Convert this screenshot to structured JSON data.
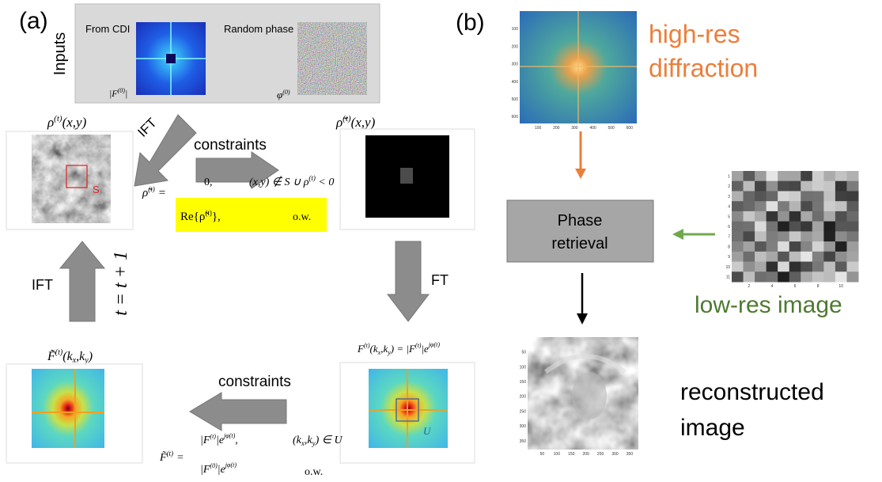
{
  "panel_a": {
    "label": "(a)",
    "inputs": {
      "title": "Inputs",
      "from_cdi": "From CDI",
      "random_phase": "Random phase",
      "amplitude": {
        "open": "|F",
        "sup": "(0)",
        "close": "|"
      },
      "phase": {
        "base": "φ",
        "sup": "(0)"
      }
    },
    "rho": {
      "base": "ρ",
      "sup": "(t)",
      "args": "(x,y)"
    },
    "support": "S",
    "ift_diagonal": "IFT",
    "constraints_top": "constraints",
    "eq_top": {
      "lhs": "ρ̃",
      "lhs_sup": "(t)",
      "equals": "=",
      "case1_value": "0,",
      "case1_cond": "(x,y) ∉ S ∪ ρ",
      "case1_sup": "(t)",
      "case1_tail": " < 0",
      "case2_value": "Re{ρ̃",
      "case2_sup": "(t)",
      "case2_tail": "},",
      "case2_cond": "o.w."
    },
    "rho_tilde": {
      "base": "ρ̃",
      "sup": "(t)",
      "args": "(x,y)"
    },
    "ft": "FT",
    "ift_left": "IFT",
    "iteration": "t = t + 1",
    "f_tilde": {
      "base": "F̃",
      "sup": "(t)",
      "open": "(k",
      "sub1": "x",
      "comma": ",k",
      "sub2": "y",
      "close": ")"
    },
    "f_measured": {
      "base": "F",
      "sup": "(t)",
      "open": "(k",
      "sub1": "x",
      "comma": ",k",
      "sub2": "y",
      "mid": ") = |F",
      "sup2": "(t)",
      "bar": "|e",
      "sup3": "jφ(t)"
    },
    "modulus_support": "U",
    "constraints_bottom": "constraints",
    "eq_bottom": {
      "lhs": "F̃",
      "lhs_sup": "(t)",
      "equals": "=",
      "case1": {
        "a": "|F",
        "a_sup": "(t)",
        "b": "|e",
        "b_sup": "jφ(t)",
        "c": ",",
        "cond_open": "(k",
        "sub1": "x",
        "comma": ",k",
        "sub2": "y",
        "cond_close": ") ∈ U"
      },
      "case2": {
        "a": "|F",
        "a_sup": "(0)",
        "b": "|e",
        "b_sup": "jφ(t)",
        "cond": "o.w."
      }
    }
  },
  "panel_b": {
    "label": "(b)",
    "high_res": [
      "high-res",
      "diffraction"
    ],
    "box": [
      "Phase",
      "retrieval"
    ],
    "low_res": "low-res image",
    "reconstructed": [
      "reconstructed",
      "image"
    ],
    "diffraction_axes": {
      "xticks": [
        100,
        200,
        300,
        400,
        500,
        600
      ],
      "yticks": [
        100,
        200,
        300,
        400,
        500,
        600
      ]
    },
    "lowres_axes": {
      "xticks": [
        2,
        4,
        6,
        8,
        10
      ],
      "yticks": [
        1,
        2,
        3,
        4,
        5,
        6,
        7,
        8,
        9,
        10,
        11
      ]
    },
    "reconstructed_axes": {
      "xticks": [
        50,
        100,
        150,
        200,
        250,
        300,
        350
      ],
      "yticks": [
        50,
        100,
        150,
        200,
        250,
        300,
        350
      ]
    }
  }
}
